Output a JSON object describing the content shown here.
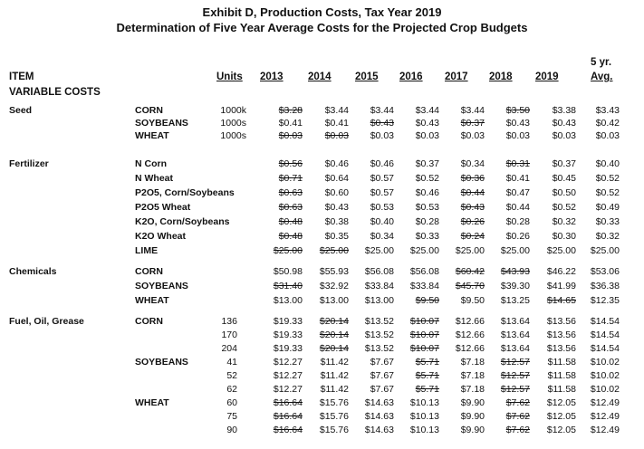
{
  "title1": "Exhibit D, Production Costs, Tax Year 2019",
  "title2": "Determination of Five Year Average Costs for the Projected Crop Budgets",
  "header": {
    "item": "ITEM",
    "units": "Units",
    "years": [
      "2013",
      "2014",
      "2015",
      "2016",
      "2017",
      "2018",
      "2019"
    ],
    "avg_top": "5 yr.",
    "avg": "Avg."
  },
  "variable_costs": "VARIABLE COSTS",
  "sections": [
    {
      "name": "Seed",
      "rows": [
        {
          "label": "CORN",
          "unit": "1000k",
          "vals": [
            "$3.28",
            "$3.44",
            "$3.44",
            "$3.44",
            "$3.44",
            "$3.50",
            "$3.38",
            "$3.43"
          ],
          "strike": [
            0,
            5
          ]
        },
        {
          "label": "SOYBEANS",
          "unit": "1000s",
          "vals": [
            "$0.41",
            "$0.41",
            "$0.43",
            "$0.43",
            "$0.37",
            "$0.43",
            "$0.43",
            "$0.42"
          ],
          "strike": [
            2,
            4
          ]
        },
        {
          "label": "WHEAT",
          "unit": "1000s",
          "vals": [
            "$0.03",
            "$0.03",
            "$0.03",
            "$0.03",
            "$0.03",
            "$0.03",
            "$0.03",
            "$0.03"
          ],
          "strike": [
            0,
            1
          ]
        }
      ]
    },
    {
      "name": "Fertilizer",
      "rows": [
        {
          "label": "N  Corn",
          "unit": "",
          "vals": [
            "$0.56",
            "$0.46",
            "$0.46",
            "$0.37",
            "$0.34",
            "$0.31",
            "$0.37",
            "$0.40"
          ],
          "strike": [
            0,
            5
          ]
        },
        {
          "label": "N  Wheat",
          "unit": "",
          "vals": [
            "$0.71",
            "$0.64",
            "$0.57",
            "$0.52",
            "$0.36",
            "$0.41",
            "$0.45",
            "$0.52"
          ],
          "strike": [
            0,
            4
          ]
        },
        {
          "label": "P2O5, Corn/Soybeans",
          "unit": "",
          "vals": [
            "$0.63",
            "$0.60",
            "$0.57",
            "$0.46",
            "$0.44",
            "$0.47",
            "$0.50",
            "$0.52"
          ],
          "strike": [
            0,
            4
          ]
        },
        {
          "label": "P2O5 Wheat",
          "unit": "",
          "vals": [
            "$0.63",
            "$0.43",
            "$0.53",
            "$0.53",
            "$0.43",
            "$0.44",
            "$0.52",
            "$0.49"
          ],
          "strike": [
            0,
            4
          ]
        },
        {
          "label": "K2O, Corn/Soybeans",
          "unit": "",
          "vals": [
            "$0.48",
            "$0.38",
            "$0.40",
            "$0.28",
            "$0.26",
            "$0.28",
            "$0.32",
            "$0.33"
          ],
          "strike": [
            0,
            4
          ]
        },
        {
          "label": "K2O Wheat",
          "unit": "",
          "vals": [
            "$0.48",
            "$0.35",
            "$0.34",
            "$0.33",
            "$0.24",
            "$0.26",
            "$0.30",
            "$0.32"
          ],
          "strike": [
            0,
            4
          ]
        },
        {
          "label": "LIME",
          "unit": "",
          "vals": [
            "$25.00",
            "$25.00",
            "$25.00",
            "$25.00",
            "$25.00",
            "$25.00",
            "$25.00",
            "$25.00"
          ],
          "strike": [
            0,
            1
          ]
        }
      ]
    },
    {
      "name": "Chemicals",
      "rows": [
        {
          "label": "CORN",
          "unit": "",
          "vals": [
            "$50.98",
            "$55.93",
            "$56.08",
            "$56.08",
            "$60.42",
            "$43.93",
            "$46.22",
            "$53.06"
          ],
          "strike": [
            4,
            5
          ]
        },
        {
          "label": "SOYBEANS",
          "unit": "",
          "vals": [
            "$31.40",
            "$32.92",
            "$33.84",
            "$33.84",
            "$45.70",
            "$39.30",
            "$41.99",
            "$36.38"
          ],
          "strike": [
            0,
            4
          ]
        },
        {
          "label": "WHEAT",
          "unit": "",
          "vals": [
            "$13.00",
            "$13.00",
            "$13.00",
            "$9.50",
            "$9.50",
            "$13.25",
            "$14.65",
            "$12.35"
          ],
          "strike": [
            3,
            6
          ]
        }
      ]
    },
    {
      "name": "Fuel, Oil, Grease",
      "rows": [
        {
          "label": "CORN",
          "unit": "136",
          "vals": [
            "$19.33",
            "$20.14",
            "$13.52",
            "$10.07",
            "$12.66",
            "$13.64",
            "$13.56",
            "$14.54"
          ],
          "strike": [
            1,
            3
          ]
        },
        {
          "label": "",
          "unit": "170",
          "vals": [
            "$19.33",
            "$20.14",
            "$13.52",
            "$10.07",
            "$12.66",
            "$13.64",
            "$13.56",
            "$14.54"
          ],
          "strike": [
            1,
            3
          ]
        },
        {
          "label": "",
          "unit": "204",
          "vals": [
            "$19.33",
            "$20.14",
            "$13.52",
            "$10.07",
            "$12.66",
            "$13.64",
            "$13.56",
            "$14.54"
          ],
          "strike": [
            1,
            3
          ]
        },
        {
          "label": "SOYBEANS",
          "unit": "41",
          "vals": [
            "$12.27",
            "$11.42",
            "$7.67",
            "$5.71",
            "$7.18",
            "$12.57",
            "$11.58",
            "$10.02"
          ],
          "strike": [
            3,
            5
          ]
        },
        {
          "label": "",
          "unit": "52",
          "vals": [
            "$12.27",
            "$11.42",
            "$7.67",
            "$5.71",
            "$7.18",
            "$12.57",
            "$11.58",
            "$10.02"
          ],
          "strike": [
            3,
            5
          ]
        },
        {
          "label": "",
          "unit": "62",
          "vals": [
            "$12.27",
            "$11.42",
            "$7.67",
            "$5.71",
            "$7.18",
            "$12.57",
            "$11.58",
            "$10.02"
          ],
          "strike": [
            3,
            5
          ]
        },
        {
          "label": "WHEAT",
          "unit": "60",
          "vals": [
            "$16.64",
            "$15.76",
            "$14.63",
            "$10.13",
            "$9.90",
            "$7.62",
            "$12.05",
            "$12.49"
          ],
          "strike": [
            0,
            5
          ]
        },
        {
          "label": "",
          "unit": "75",
          "vals": [
            "$16.64",
            "$15.76",
            "$14.63",
            "$10.13",
            "$9.90",
            "$7.62",
            "$12.05",
            "$12.49"
          ],
          "strike": [
            0,
            5
          ]
        },
        {
          "label": "",
          "unit": "90",
          "vals": [
            "$16.64",
            "$15.76",
            "$14.63",
            "$10.13",
            "$9.90",
            "$7.62",
            "$12.05",
            "$12.49"
          ],
          "strike": [
            0,
            5
          ]
        }
      ]
    }
  ]
}
